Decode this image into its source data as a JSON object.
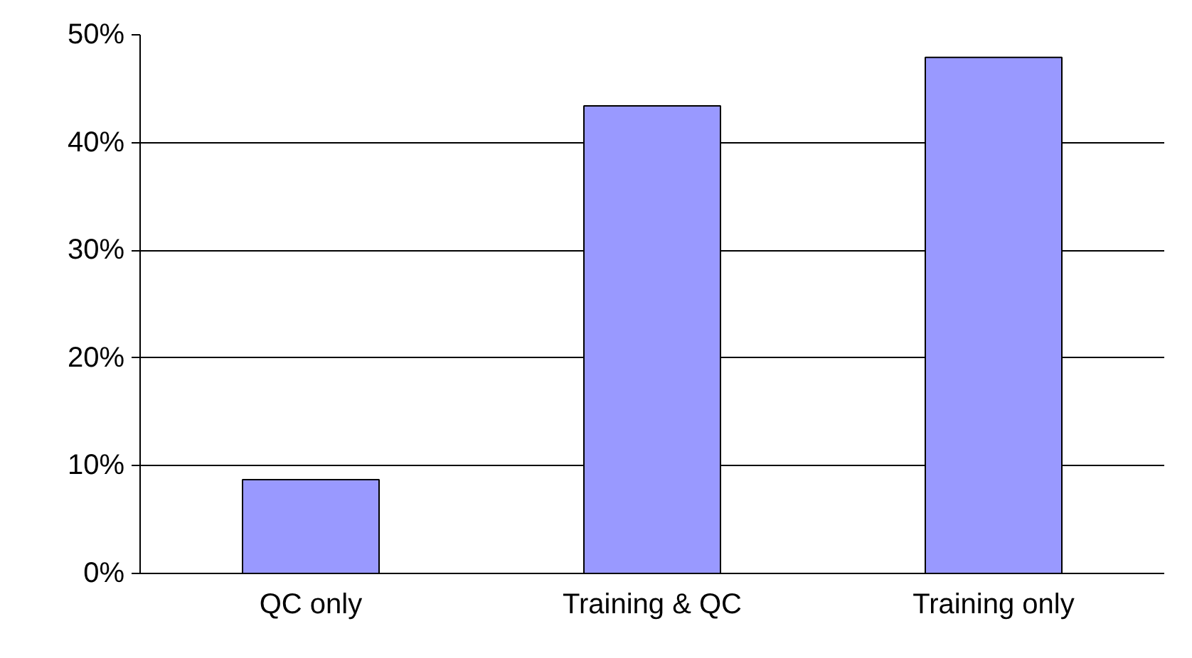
{
  "chart_data": {
    "type": "bar",
    "categories": [
      "QC only",
      "Training & QC",
      "Training only"
    ],
    "values": [
      8.7,
      43.4,
      47.9
    ],
    "color": "#9999ff",
    "ylim": [
      0,
      50
    ],
    "yticks": [
      {
        "value": 0,
        "label": "0%"
      },
      {
        "value": 10,
        "label": "10%"
      },
      {
        "value": 20,
        "label": "20%"
      },
      {
        "value": 30,
        "label": "30%"
      },
      {
        "value": 40,
        "label": "40%"
      },
      {
        "value": 50,
        "label": "50%"
      }
    ],
    "grid": "y"
  }
}
